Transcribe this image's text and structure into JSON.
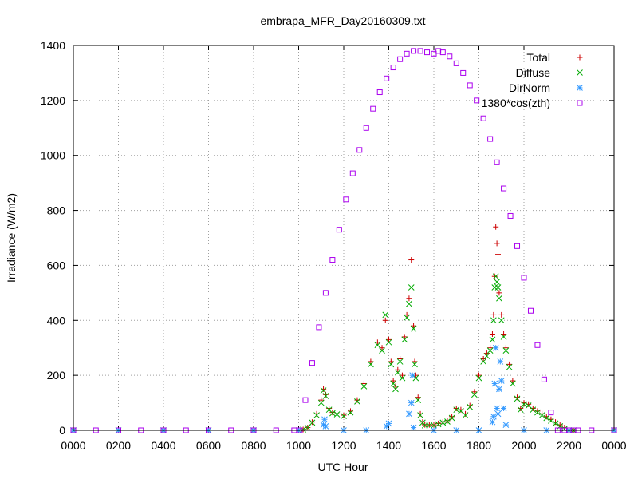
{
  "chart_data": {
    "type": "scatter",
    "title": "embrapa_MFR_Day20160309.txt",
    "xlabel": "UTC Hour",
    "ylabel": "Irradiance (W/m2)",
    "xlim": [
      0,
      24
    ],
    "ylim": [
      0,
      1400
    ],
    "grid": true,
    "legend_position": "top-right",
    "x_ticks": [
      {
        "value": 0,
        "label": "0000"
      },
      {
        "value": 2,
        "label": "0200"
      },
      {
        "value": 4,
        "label": "0400"
      },
      {
        "value": 6,
        "label": "0600"
      },
      {
        "value": 8,
        "label": "0800"
      },
      {
        "value": 10,
        "label": "1000"
      },
      {
        "value": 12,
        "label": "1200"
      },
      {
        "value": 14,
        "label": "1400"
      },
      {
        "value": 16,
        "label": "1600"
      },
      {
        "value": 18,
        "label": "1800"
      },
      {
        "value": 20,
        "label": "2000"
      },
      {
        "value": 22,
        "label": "2200"
      },
      {
        "value": 24,
        "label": "0000"
      }
    ],
    "y_ticks": [
      0,
      200,
      400,
      600,
      800,
      1000,
      1200,
      1400
    ],
    "series": [
      {
        "name": "Total",
        "marker": "plus",
        "color": "#cc0000",
        "x": [
          0,
          2,
          4,
          6,
          8,
          10,
          10.2,
          10.4,
          10.6,
          10.8,
          11.0,
          11.1,
          11.2,
          11.35,
          11.5,
          11.7,
          12.0,
          12.3,
          12.6,
          12.9,
          13.2,
          13.5,
          13.7,
          13.85,
          14.0,
          14.1,
          14.2,
          14.3,
          14.4,
          14.5,
          14.6,
          14.7,
          14.8,
          14.9,
          15.0,
          15.1,
          15.15,
          15.2,
          15.3,
          15.4,
          15.5,
          15.6,
          15.8,
          16.0,
          16.2,
          16.4,
          16.6,
          16.8,
          17.0,
          17.2,
          17.4,
          17.6,
          17.8,
          18.0,
          18.2,
          18.35,
          18.5,
          18.6,
          18.65,
          18.7,
          18.75,
          18.8,
          18.85,
          18.9,
          19.0,
          19.1,
          19.2,
          19.35,
          19.5,
          19.7,
          19.85,
          20.0,
          20.2,
          20.4,
          20.6,
          20.8,
          21.0,
          21.2,
          21.4,
          21.6,
          21.8,
          22.0,
          22.2,
          24
        ],
        "y": [
          0,
          0,
          0,
          0,
          0,
          0,
          3,
          10,
          30,
          60,
          110,
          150,
          130,
          80,
          65,
          60,
          55,
          70,
          110,
          170,
          250,
          320,
          300,
          400,
          330,
          250,
          180,
          160,
          220,
          260,
          200,
          340,
          420,
          480,
          620,
          380,
          250,
          200,
          120,
          60,
          30,
          20,
          20,
          20,
          25,
          30,
          35,
          50,
          80,
          75,
          60,
          90,
          140,
          200,
          260,
          280,
          300,
          350,
          420,
          560,
          740,
          680,
          640,
          500,
          420,
          350,
          300,
          240,
          180,
          120,
          80,
          100,
          95,
          80,
          70,
          60,
          50,
          40,
          30,
          20,
          10,
          0,
          0,
          0
        ]
      },
      {
        "name": "Diffuse",
        "marker": "cross",
        "color": "#00aa00",
        "x": [
          0,
          2,
          4,
          6,
          8,
          10,
          10.2,
          10.4,
          10.6,
          10.8,
          11.0,
          11.1,
          11.2,
          11.35,
          11.5,
          11.7,
          12.0,
          12.3,
          12.6,
          12.9,
          13.2,
          13.5,
          13.7,
          13.85,
          14.0,
          14.1,
          14.2,
          14.3,
          14.4,
          14.5,
          14.6,
          14.7,
          14.8,
          14.9,
          15.0,
          15.1,
          15.15,
          15.2,
          15.3,
          15.4,
          15.5,
          15.6,
          15.8,
          16.0,
          16.2,
          16.4,
          16.6,
          16.8,
          17.0,
          17.2,
          17.4,
          17.6,
          17.8,
          18.0,
          18.2,
          18.35,
          18.5,
          18.6,
          18.65,
          18.7,
          18.75,
          18.8,
          18.85,
          18.9,
          19.0,
          19.1,
          19.2,
          19.35,
          19.5,
          19.7,
          19.85,
          20.0,
          20.2,
          20.4,
          20.6,
          20.8,
          21.0,
          21.2,
          21.4,
          21.6,
          21.8,
          22.0,
          22.2,
          24
        ],
        "y": [
          0,
          0,
          0,
          0,
          0,
          0,
          3,
          10,
          28,
          55,
          100,
          145,
          125,
          75,
          62,
          58,
          52,
          65,
          105,
          160,
          240,
          310,
          290,
          420,
          320,
          240,
          170,
          150,
          210,
          250,
          190,
          330,
          410,
          460,
          520,
          370,
          240,
          190,
          110,
          55,
          28,
          18,
          18,
          18,
          22,
          28,
          32,
          45,
          75,
          70,
          55,
          85,
          130,
          190,
          250,
          270,
          290,
          330,
          400,
          520,
          560,
          540,
          520,
          480,
          400,
          340,
          290,
          230,
          170,
          115,
          75,
          95,
          90,
          75,
          65,
          55,
          45,
          35,
          25,
          15,
          5,
          0,
          0,
          0
        ]
      },
      {
        "name": "DirNorm",
        "marker": "star",
        "color": "#3399ff",
        "x": [
          0,
          2,
          4,
          6,
          8,
          10,
          11.1,
          11.15,
          11.2,
          12.0,
          13.0,
          13.9,
          14.0,
          14.9,
          15.0,
          15.05,
          15.1,
          16.0,
          17.0,
          18.0,
          18.6,
          18.65,
          18.7,
          18.75,
          18.8,
          18.85,
          18.9,
          18.95,
          19.0,
          19.1,
          19.2,
          20.0,
          21.0,
          22.0,
          24
        ],
        "y": [
          0,
          0,
          0,
          0,
          0,
          0,
          20,
          40,
          15,
          0,
          0,
          15,
          25,
          60,
          100,
          200,
          10,
          0,
          0,
          0,
          30,
          50,
          170,
          300,
          80,
          60,
          150,
          250,
          180,
          80,
          20,
          0,
          0,
          0,
          0
        ]
      },
      {
        "name": "1380*cos(zth)",
        "marker": "square",
        "color": "#aa00ee",
        "x": [
          0,
          1,
          2,
          3,
          4,
          5,
          6,
          7,
          8,
          9,
          9.8,
          10.05,
          10.3,
          10.6,
          10.9,
          11.2,
          11.5,
          11.8,
          12.1,
          12.4,
          12.7,
          13.0,
          13.3,
          13.6,
          13.9,
          14.2,
          14.5,
          14.8,
          15.1,
          15.4,
          15.7,
          16.0,
          16.2,
          16.4,
          16.7,
          17.0,
          17.3,
          17.6,
          17.9,
          18.2,
          18.5,
          18.8,
          19.1,
          19.4,
          19.7,
          20.0,
          20.3,
          20.6,
          20.9,
          21.2,
          21.5,
          21.8,
          22.0,
          22.2,
          22.4,
          23,
          24
        ],
        "y": [
          0,
          0,
          0,
          0,
          0,
          0,
          0,
          0,
          0,
          0,
          0,
          0,
          110,
          245,
          375,
          500,
          620,
          730,
          840,
          935,
          1020,
          1100,
          1170,
          1230,
          1280,
          1320,
          1350,
          1370,
          1380,
          1380,
          1375,
          1370,
          1380,
          1375,
          1360,
          1335,
          1300,
          1255,
          1200,
          1135,
          1060,
          975,
          880,
          780,
          670,
          555,
          435,
          310,
          185,
          65,
          0,
          0,
          0,
          0,
          0,
          0,
          0
        ]
      }
    ]
  }
}
